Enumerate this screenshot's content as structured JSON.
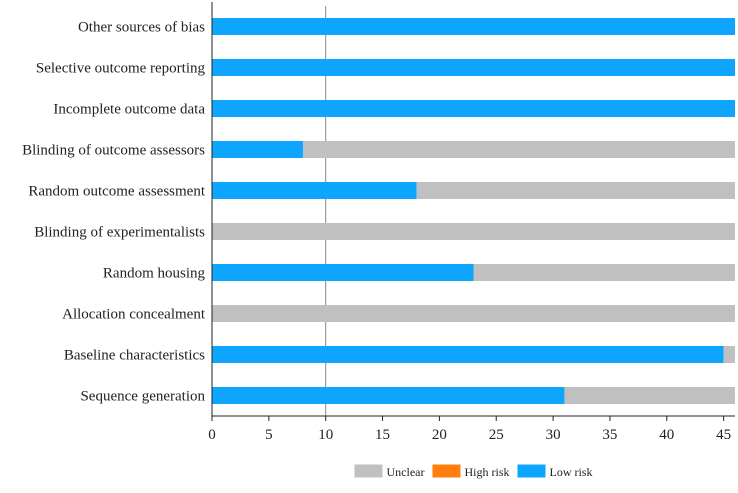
{
  "chart_data": {
    "type": "bar",
    "orientation": "horizontal",
    "stacked": true,
    "categories": [
      "Other sources of bias",
      "Selective outcome reporting",
      "Incomplete outcome data",
      "Blinding of outcome assessors",
      "Random outcome assessment",
      "Blinding of experimentalists",
      "Random housing",
      "Allocation concealment",
      "Baseline characteristics",
      "Sequence generation"
    ],
    "series": [
      {
        "name": "Low risk",
        "color": "#0ea5ff",
        "values": [
          46,
          46,
          46,
          8,
          18,
          0,
          23,
          0,
          45,
          31
        ]
      },
      {
        "name": "High risk",
        "color": "#ff7f0e",
        "values": [
          0,
          0,
          0,
          0,
          0,
          0,
          0,
          0,
          0,
          0
        ]
      },
      {
        "name": "Unclear",
        "color": "#c0c0c0",
        "values": [
          0,
          0,
          0,
          38,
          28,
          46,
          23,
          46,
          1,
          15
        ]
      }
    ],
    "xlim": [
      0,
      46
    ],
    "xticks": [
      "0",
      "5",
      "10",
      "15",
      "20",
      "25",
      "30",
      "35",
      "40",
      "45"
    ],
    "legend": {
      "placement": "bottom-center",
      "order": [
        "Unclear",
        "High risk",
        "Low risk"
      ]
    },
    "grid": "vertical line at 10",
    "title": "",
    "xlabel": "",
    "ylabel": ""
  }
}
